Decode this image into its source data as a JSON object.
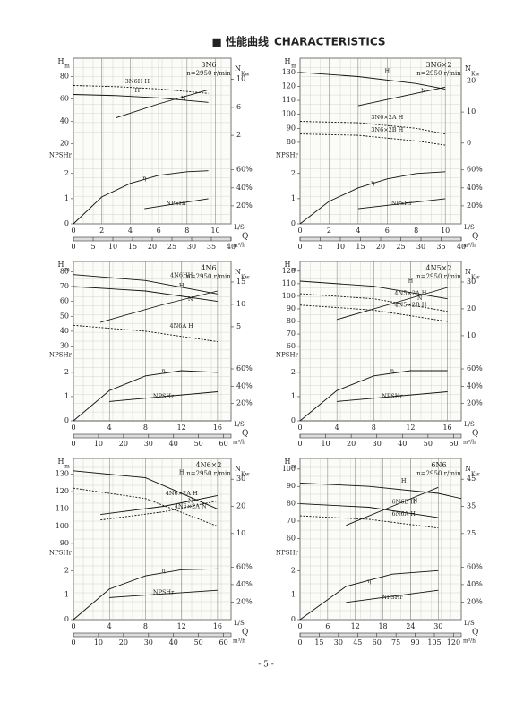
{
  "header": {
    "title": "■ 性能曲线",
    "title_en": "CHARACTERISTICS"
  },
  "axis_labels": {
    "h": "H",
    "h_unit": "m",
    "n": "N",
    "n_unit": "Kw",
    "npsh": "NPSHr",
    "x": "L/S",
    "q": "Q",
    "x2": "m³/h"
  },
  "chart_data": [
    {
      "type": "line",
      "title": "3N6",
      "subtitle": "n=2950 r/min",
      "xlim": [
        0,
        11.1
      ],
      "xticks": [
        0,
        2,
        4,
        6,
        8,
        10
      ],
      "x2lim": [
        0,
        40
      ],
      "x2ticks": [
        0,
        5,
        10,
        15,
        20,
        25,
        30,
        35,
        40
      ],
      "hlim": [
        15,
        90
      ],
      "hticks": [
        20,
        40,
        60,
        80
      ],
      "nlim": [
        0,
        12
      ],
      "nticks": [
        2,
        6,
        10
      ],
      "efflim": [
        0,
        70
      ],
      "effticks": [
        {
          "value": 20,
          "label": "20%"
        },
        {
          "value": 40,
          "label": "40%"
        },
        {
          "value": 60,
          "label": "60%"
        }
      ],
      "npshlim": [
        0,
        2.5
      ],
      "npshticks": [
        0,
        1,
        2
      ],
      "series": [
        {
          "name": "3N6H H",
          "axis": "h",
          "dash": true,
          "x": [
            0,
            3,
            6,
            9.5
          ],
          "values": [
            72,
            71,
            69,
            65
          ]
        },
        {
          "name": "H",
          "axis": "h",
          "dash": false,
          "x": [
            0,
            3,
            6,
            9.5
          ],
          "values": [
            64,
            63,
            61,
            57
          ]
        },
        {
          "name": "N",
          "axis": "n",
          "dash": false,
          "x": [
            3,
            6,
            9.5
          ],
          "values": [
            4.5,
            6.5,
            8.5
          ]
        },
        {
          "name": "η",
          "axis": "eff",
          "dash": false,
          "x": [
            0,
            2,
            4,
            6,
            8,
            9.5
          ],
          "values": [
            0,
            30,
            45,
            54,
            58,
            59
          ]
        },
        {
          "name": "NPSHr",
          "axis": "npsh",
          "dash": false,
          "x": [
            5,
            9.5
          ],
          "values": [
            0.6,
            1.0
          ]
        }
      ]
    },
    {
      "type": "line",
      "title": "3N6×2",
      "subtitle": "n=2950 r/min",
      "xlim": [
        0,
        11.1
      ],
      "xticks": [
        0,
        2,
        4,
        6,
        8,
        10
      ],
      "x2lim": [
        0,
        40
      ],
      "x2ticks": [
        0,
        5,
        10,
        15,
        20,
        25,
        30,
        35,
        40
      ],
      "hlim": [
        75,
        135
      ],
      "hticks": [
        80,
        90,
        100,
        110,
        120,
        130
      ],
      "nlim": [
        -2,
        25
      ],
      "nticks": [
        0,
        10,
        20
      ],
      "efflim": [
        0,
        70
      ],
      "effticks": [
        {
          "value": 20,
          "label": "20%"
        },
        {
          "value": 40,
          "label": "40%"
        },
        {
          "value": 60,
          "label": "60%"
        }
      ],
      "npshlim": [
        0,
        2.5
      ],
      "npshticks": [
        0,
        1,
        2
      ],
      "series": [
        {
          "name": "H",
          "axis": "h",
          "dash": false,
          "x": [
            0,
            4,
            8,
            10
          ],
          "values": [
            130,
            127,
            122,
            118
          ]
        },
        {
          "name": "3N6×2A H",
          "axis": "h",
          "dash": true,
          "x": [
            0,
            4,
            8,
            10
          ],
          "values": [
            95,
            94,
            90,
            86
          ]
        },
        {
          "name": "3N6×2B H",
          "axis": "h",
          "dash": true,
          "x": [
            0,
            4,
            8,
            10
          ],
          "values": [
            86,
            85,
            81,
            78
          ]
        },
        {
          "name": "N",
          "axis": "n",
          "dash": false,
          "x": [
            4,
            7,
            10
          ],
          "values": [
            12,
            15,
            18
          ]
        },
        {
          "name": "η",
          "axis": "eff",
          "dash": false,
          "x": [
            0,
            2,
            4,
            6,
            8,
            10
          ],
          "values": [
            0,
            25,
            40,
            50,
            56,
            58
          ]
        },
        {
          "name": "NPSHr",
          "axis": "npsh",
          "dash": false,
          "x": [
            4,
            10
          ],
          "values": [
            0.6,
            1.0
          ]
        }
      ]
    },
    {
      "type": "line",
      "title": "4N6",
      "subtitle": "n=2950 r/min",
      "xlim": [
        0,
        17.5
      ],
      "xticks": [
        0,
        4,
        8,
        12,
        16
      ],
      "x2lim": [
        0,
        63
      ],
      "x2ticks": [
        0,
        10,
        20,
        30,
        40,
        50,
        60
      ],
      "hlim": [
        28,
        82
      ],
      "hticks": [
        30,
        40,
        50,
        60,
        70,
        80
      ],
      "nlim": [
        0,
        18
      ],
      "nticks": [
        5,
        10,
        15
      ],
      "efflim": [
        0,
        70
      ],
      "effticks": [
        {
          "value": 20,
          "label": "20%"
        },
        {
          "value": 40,
          "label": "40%"
        },
        {
          "value": 60,
          "label": "60%"
        }
      ],
      "npshlim": [
        0,
        2.5
      ],
      "npshticks": [
        0,
        1,
        2
      ],
      "series": [
        {
          "name": "4N6HH",
          "axis": "h",
          "dash": false,
          "x": [
            0,
            8,
            16
          ],
          "values": [
            78,
            74,
            65
          ]
        },
        {
          "name": "H",
          "axis": "h",
          "dash": false,
          "x": [
            0,
            8,
            16
          ],
          "values": [
            70,
            67,
            60
          ]
        },
        {
          "name": "4N6A H",
          "axis": "h",
          "dash": true,
          "x": [
            0,
            8,
            16
          ],
          "values": [
            44,
            40,
            33
          ]
        },
        {
          "name": "N",
          "axis": "n",
          "dash": false,
          "x": [
            3,
            10,
            16
          ],
          "values": [
            6,
            10,
            13
          ]
        },
        {
          "name": "η",
          "axis": "eff",
          "dash": false,
          "x": [
            0,
            4,
            8,
            12,
            16
          ],
          "values": [
            0,
            35,
            52,
            58,
            56
          ]
        },
        {
          "name": "NPSHr",
          "axis": "npsh",
          "dash": false,
          "x": [
            4,
            16
          ],
          "values": [
            0.8,
            1.2
          ]
        }
      ]
    },
    {
      "type": "line",
      "title": "4N5×2",
      "subtitle": "n=2950 r/min",
      "xlim": [
        0,
        17.5
      ],
      "xticks": [
        0,
        4,
        8,
        12,
        16
      ],
      "x2lim": [
        0,
        63
      ],
      "x2ticks": [
        0,
        10,
        20,
        30,
        40,
        50,
        60
      ],
      "hlim": [
        58,
        122
      ],
      "hticks": [
        60,
        70,
        80,
        90,
        100,
        110,
        120
      ],
      "nlim": [
        5,
        35
      ],
      "nticks": [
        10,
        20,
        30
      ],
      "efflim": [
        0,
        70
      ],
      "effticks": [
        {
          "value": 20,
          "label": "20%"
        },
        {
          "value": 40,
          "label": "40%"
        },
        {
          "value": 60,
          "label": "60%"
        }
      ],
      "npshlim": [
        0,
        2.5
      ],
      "npshticks": [
        0,
        1,
        2
      ],
      "series": [
        {
          "name": "H",
          "axis": "h",
          "dash": false,
          "x": [
            0,
            8,
            16
          ],
          "values": [
            112,
            108,
            98
          ]
        },
        {
          "name": "4N5×2A H",
          "axis": "h",
          "dash": true,
          "x": [
            0,
            8,
            16
          ],
          "values": [
            102,
            98,
            88
          ]
        },
        {
          "name": "4N5×2B H",
          "axis": "h",
          "dash": true,
          "x": [
            0,
            8,
            16
          ],
          "values": [
            93,
            89,
            80
          ]
        },
        {
          "name": "N",
          "axis": "n",
          "dash": false,
          "x": [
            4,
            10,
            16
          ],
          "values": [
            16,
            22,
            28
          ]
        },
        {
          "name": "η",
          "axis": "eff",
          "dash": false,
          "x": [
            0,
            4,
            8,
            12,
            16
          ],
          "values": [
            0,
            35,
            52,
            58,
            58
          ]
        },
        {
          "name": "NPSHr",
          "axis": "npsh",
          "dash": false,
          "x": [
            4,
            16
          ],
          "values": [
            0.8,
            1.2
          ]
        }
      ]
    },
    {
      "type": "line",
      "title": "4N6×2",
      "subtitle": "n=2950 r/min",
      "xlim": [
        0,
        17.5
      ],
      "xticks": [
        0,
        4,
        8,
        12,
        16
      ],
      "x2lim": [
        0,
        63
      ],
      "x2ticks": [
        0,
        10,
        20,
        30,
        40,
        50,
        60
      ],
      "hlim": [
        88,
        135
      ],
      "hticks": [
        90,
        100,
        110,
        120,
        130
      ],
      "nlim": [
        5,
        35
      ],
      "nticks": [
        10,
        20,
        30
      ],
      "efflim": [
        0,
        70
      ],
      "effticks": [
        {
          "value": 20,
          "label": "20%"
        },
        {
          "value": 40,
          "label": "40%"
        },
        {
          "value": 60,
          "label": "60%"
        }
      ],
      "npshlim": [
        0,
        2.5
      ],
      "npshticks": [
        0,
        1,
        2
      ],
      "series": [
        {
          "name": "H",
          "axis": "h",
          "dash": false,
          "x": [
            0,
            8,
            16
          ],
          "values": [
            132,
            128,
            110
          ]
        },
        {
          "name": "4N6×2A H",
          "axis": "h",
          "dash": true,
          "x": [
            0,
            8,
            16
          ],
          "values": [
            122,
            116,
            100
          ]
        },
        {
          "name": "N",
          "axis": "n",
          "dash": false,
          "x": [
            3,
            10,
            16
          ],
          "values": [
            17,
            20,
            24
          ]
        },
        {
          "name": "4N6×2A N",
          "axis": "n",
          "dash": true,
          "x": [
            3,
            10,
            16
          ],
          "values": [
            15,
            18,
            22
          ]
        },
        {
          "name": "η",
          "axis": "eff",
          "dash": false,
          "x": [
            0,
            4,
            8,
            12,
            16
          ],
          "values": [
            0,
            35,
            50,
            57,
            58
          ]
        },
        {
          "name": "NPSHr",
          "axis": "npsh",
          "dash": false,
          "x": [
            4,
            16
          ],
          "values": [
            0.9,
            1.2
          ]
        }
      ]
    },
    {
      "type": "line",
      "title": "6N6",
      "subtitle": "n=2950 r/min",
      "xlim": [
        0,
        35
      ],
      "xticks": [
        0,
        6,
        12,
        18,
        24,
        30
      ],
      "x2lim": [
        0,
        126
      ],
      "x2ticks": [
        0,
        15,
        30,
        45,
        60,
        75,
        90,
        105,
        120
      ],
      "hlim": [
        55,
        102
      ],
      "hticks": [
        60,
        70,
        80,
        90,
        100
      ],
      "nlim": [
        20,
        50
      ],
      "nticks": [
        25,
        35,
        45
      ],
      "efflim": [
        0,
        70
      ],
      "effticks": [
        {
          "value": 20,
          "label": "20%"
        },
        {
          "value": 40,
          "label": "40%"
        },
        {
          "value": 60,
          "label": "60%"
        }
      ],
      "npshlim": [
        0,
        2.5
      ],
      "npshticks": [
        0,
        1,
        2
      ],
      "series": [
        {
          "name": "H",
          "axis": "h",
          "dash": false,
          "x": [
            0,
            15,
            30,
            35
          ],
          "values": [
            92,
            90,
            86,
            83
          ]
        },
        {
          "name": "6N6B H",
          "axis": "h",
          "dash": false,
          "x": [
            0,
            15,
            30
          ],
          "values": [
            80,
            78,
            72
          ]
        },
        {
          "name": "6N6A H",
          "axis": "h",
          "dash": true,
          "x": [
            0,
            15,
            30
          ],
          "values": [
            73,
            71,
            66
          ]
        },
        {
          "name": "N",
          "axis": "n",
          "dash": false,
          "x": [
            10,
            20,
            30
          ],
          "values": [
            28,
            35,
            42
          ]
        },
        {
          "name": "η",
          "axis": "eff",
          "dash": false,
          "x": [
            0,
            10,
            20,
            30
          ],
          "values": [
            0,
            38,
            52,
            56
          ]
        },
        {
          "name": "NPSHr",
          "axis": "npsh",
          "dash": false,
          "x": [
            10,
            30
          ],
          "values": [
            0.7,
            1.2
          ]
        }
      ]
    }
  ],
  "footer": {
    "page": "- 5 -"
  }
}
